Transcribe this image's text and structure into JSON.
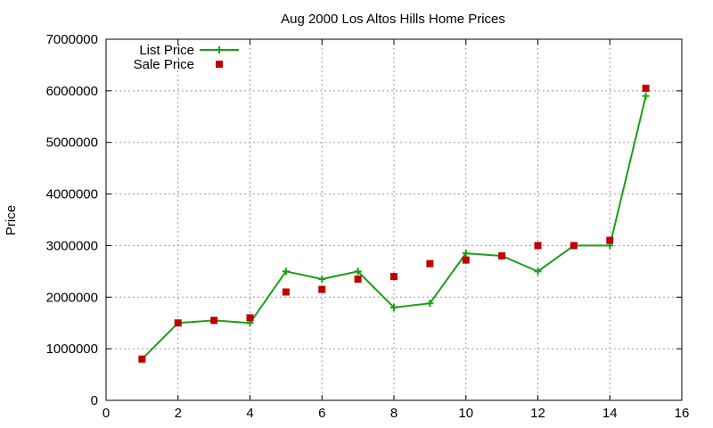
{
  "chart_data": {
    "type": "line",
    "title": "Aug 2000 Los Altos Hills Home Prices",
    "xlabel": "",
    "ylabel": "Price",
    "xlim": [
      0,
      16
    ],
    "ylim": [
      0,
      7000000
    ],
    "xticks": [
      0,
      2,
      4,
      6,
      8,
      10,
      12,
      14,
      16
    ],
    "yticks": [
      0,
      1000000,
      2000000,
      3000000,
      4000000,
      5000000,
      6000000,
      7000000
    ],
    "grid": true,
    "legend_position": "top-left",
    "series": [
      {
        "name": "List Price",
        "style": "line-with-plus-markers",
        "color": "#1a9e1a",
        "points": [
          [
            1,
            800000
          ],
          [
            2,
            1500000
          ],
          [
            3,
            1550000
          ],
          [
            4,
            1500000
          ],
          [
            5,
            2500000
          ],
          [
            6,
            2350000
          ],
          [
            7,
            2500000
          ],
          [
            8,
            1800000
          ],
          [
            9,
            1880000
          ],
          [
            10,
            2850000
          ],
          [
            11,
            2800000
          ],
          [
            12,
            2500000
          ],
          [
            13,
            3000000
          ],
          [
            14,
            3000000
          ],
          [
            15,
            5900000
          ]
        ]
      },
      {
        "name": "Sale Price",
        "style": "square-markers",
        "color": "#c00000",
        "points": [
          [
            1,
            800000
          ],
          [
            2,
            1500000
          ],
          [
            3,
            1550000
          ],
          [
            4,
            1600000
          ],
          [
            5,
            2100000
          ],
          [
            6,
            2150000
          ],
          [
            7,
            2350000
          ],
          [
            8,
            2400000
          ],
          [
            9,
            2650000
          ],
          [
            10,
            2720000
          ],
          [
            11,
            2800000
          ],
          [
            12,
            3000000
          ],
          [
            13,
            3000000
          ],
          [
            14,
            3100000
          ],
          [
            15,
            6050000
          ]
        ]
      }
    ]
  }
}
